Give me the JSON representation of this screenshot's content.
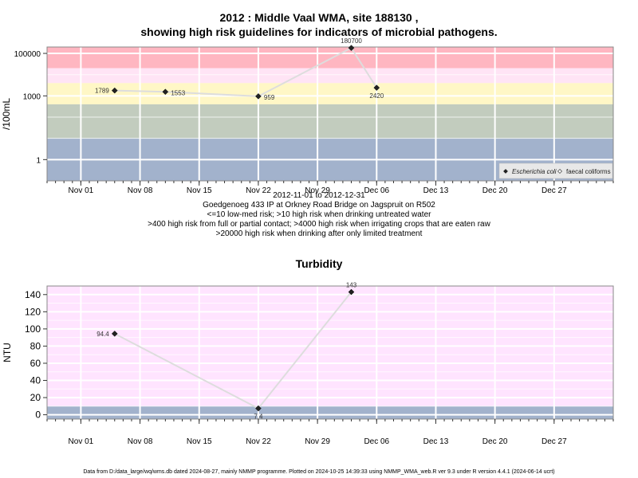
{
  "header": {
    "title_line1": "2012 : Middle Vaal WMA, site 188130 ,",
    "title_line2": "showing high risk guidelines for indicators of microbial pathogens."
  },
  "microbial_caption": {
    "line1": "2012-11-01 to 2012-12-31",
    "line2": "Goedgenoeg 433 IP at Orkney Road Bridge on Jagspruit on R502",
    "line3": "<=10 low-med risk; >10 high risk when drinking untreated water",
    "line4": ">400 high risk from full or partial contact; >4000 high risk when irrigating crops that are eaten raw",
    "line5": ">20000 high risk when drinking after only limited treatment"
  },
  "turbidity_title": "Turbidity",
  "footer": "Data from D:/data_large/wq/wms.db dated 2024-08-27, mainly NMMP programme. Plotted on 2024-10-25 14:39:33 using NMMP_WMA_web.R ver 9.3 under R version 4.4.1 (2024-06-14 ucrt)",
  "x_tick_labels": [
    "Nov 01",
    "Nov 08",
    "Nov 15",
    "Nov 22",
    "Nov 29",
    "Dec 06",
    "Dec 13",
    "Dec 20",
    "Dec 27"
  ],
  "chart_data": [
    {
      "type": "line",
      "ylabel": "/100mL",
      "yscale": "log10",
      "ylim": [
        0.1,
        200000
      ],
      "yticks": [
        1,
        1000,
        100000
      ],
      "ytick_labels": [
        "1",
        "1000",
        "100000"
      ],
      "xlim": [
        "2012-10-28",
        "2013-01-03"
      ],
      "grid": true,
      "legend_position": "bottom-right",
      "legend": [
        {
          "name": "Escherichia coli",
          "marker": "filled-diamond",
          "italic": true
        },
        {
          "name": "faecal coliforms",
          "marker": "open-diamond",
          "italic": false
        }
      ],
      "bands": [
        {
          "from": 20000,
          "to": 200000,
          "color": "#ffb6c1"
        },
        {
          "from": 4000,
          "to": 20000,
          "color": "#ffe4f5"
        },
        {
          "from": 400,
          "to": 4000,
          "color": "#fff7c6"
        },
        {
          "from": 10,
          "to": 400,
          "color": "#c2ccbe"
        },
        {
          "from": 0.1,
          "to": 10,
          "color": "#a2b2cc"
        }
      ],
      "series": [
        {
          "name": "Escherichia coli",
          "points": [
            {
              "date": "2012-11-05",
              "value": 1789,
              "label": "1789",
              "label_side": "left"
            },
            {
              "date": "2012-11-11",
              "value": 1553,
              "label": "1553",
              "label_side": "right"
            },
            {
              "date": "2012-11-22",
              "value": 959,
              "label": "959",
              "label_side": "right"
            },
            {
              "date": "2012-12-03",
              "value": 180700,
              "label": "180700",
              "label_side": "top"
            },
            {
              "date": "2012-12-06",
              "value": 2420,
              "label": "2420",
              "label_side": "bottom"
            }
          ]
        }
      ]
    },
    {
      "type": "line",
      "title": "Turbidity",
      "ylabel": "NTU",
      "yscale": "linear",
      "ylim": [
        -5,
        150
      ],
      "yticks": [
        0,
        20,
        40,
        60,
        80,
        100,
        120,
        140
      ],
      "ytick_labels": [
        "0",
        "20",
        "40",
        "60",
        "80",
        "100",
        "120",
        "140"
      ],
      "xlim": [
        "2012-10-28",
        "2013-01-03"
      ],
      "grid": true,
      "bands": [
        {
          "from": 10,
          "to": 150,
          "color": "#ffe4ff"
        },
        {
          "from": -5,
          "to": 10,
          "color": "#a2b2cc"
        }
      ],
      "series": [
        {
          "name": "",
          "points": [
            {
              "date": "2012-11-05",
              "value": 94.4,
              "label": "94.4",
              "label_side": "left"
            },
            {
              "date": "2012-11-22",
              "value": 7.4,
              "label": "7.4",
              "label_side": "bottom"
            },
            {
              "date": "2012-12-03",
              "value": 143,
              "label": "143",
              "label_side": "top"
            }
          ]
        }
      ]
    }
  ]
}
